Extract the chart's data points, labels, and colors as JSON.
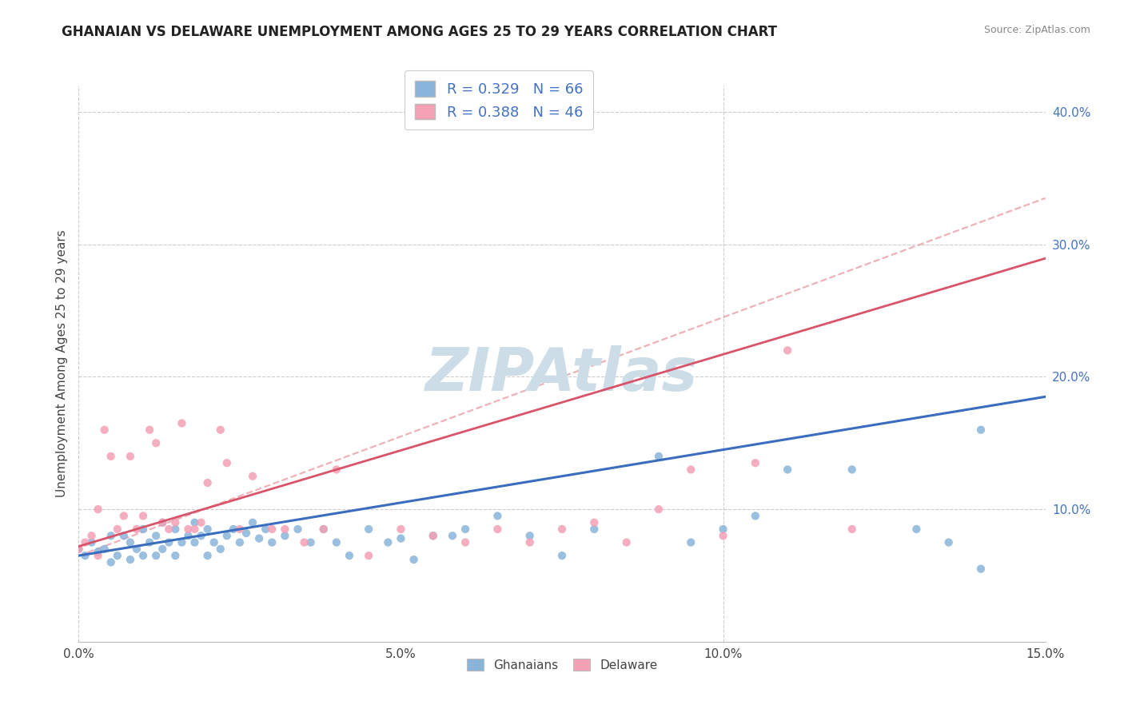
{
  "title": "GHANAIAN VS DELAWARE UNEMPLOYMENT AMONG AGES 25 TO 29 YEARS CORRELATION CHART",
  "source": "Source: ZipAtlas.com",
  "ylabel": "Unemployment Among Ages 25 to 29 years",
  "xlim": [
    0.0,
    0.15
  ],
  "ylim": [
    0.0,
    0.42
  ],
  "xticks": [
    0.0,
    0.05,
    0.1,
    0.15
  ],
  "xticklabels": [
    "0.0%",
    "5.0%",
    "10.0%",
    "15.0%"
  ],
  "yticks_right": [
    0.1,
    0.2,
    0.3,
    0.4
  ],
  "yticklabels_right": [
    "10.0%",
    "20.0%",
    "30.0%",
    "40.0%"
  ],
  "legend_r1": "R = 0.329",
  "legend_n1": "N = 66",
  "legend_r2": "R = 0.388",
  "legend_n2": "N = 46",
  "blue_color": "#8ab4d9",
  "pink_color": "#f4a0b5",
  "trend_blue": "#3b6dbf",
  "trend_pink": "#d9546a",
  "dashed_pink": "#e8909a",
  "watermark": "ZIPAtlas",
  "watermark_color": "#ccdde8",
  "blue_intercept": 0.065,
  "blue_slope": 0.8,
  "pink_intercept": 0.072,
  "pink_slope": 1.45,
  "dashed_intercept": 0.065,
  "dashed_slope": 1.8,
  "blue_scatter_x": [
    0.0,
    0.001,
    0.002,
    0.003,
    0.004,
    0.005,
    0.005,
    0.006,
    0.007,
    0.008,
    0.008,
    0.009,
    0.01,
    0.01,
    0.011,
    0.012,
    0.012,
    0.013,
    0.013,
    0.014,
    0.015,
    0.015,
    0.016,
    0.017,
    0.018,
    0.018,
    0.019,
    0.02,
    0.02,
    0.021,
    0.022,
    0.023,
    0.024,
    0.025,
    0.026,
    0.027,
    0.028,
    0.029,
    0.03,
    0.032,
    0.034,
    0.036,
    0.038,
    0.04,
    0.042,
    0.045,
    0.048,
    0.05,
    0.052,
    0.055,
    0.058,
    0.06,
    0.065,
    0.07,
    0.075,
    0.08,
    0.09,
    0.095,
    0.1,
    0.105,
    0.11,
    0.12,
    0.13,
    0.135,
    0.14,
    0.14
  ],
  "blue_scatter_y": [
    0.07,
    0.065,
    0.075,
    0.068,
    0.07,
    0.06,
    0.08,
    0.065,
    0.08,
    0.062,
    0.075,
    0.07,
    0.065,
    0.085,
    0.075,
    0.065,
    0.08,
    0.07,
    0.09,
    0.075,
    0.065,
    0.085,
    0.075,
    0.08,
    0.075,
    0.09,
    0.08,
    0.065,
    0.085,
    0.075,
    0.07,
    0.08,
    0.085,
    0.075,
    0.082,
    0.09,
    0.078,
    0.085,
    0.075,
    0.08,
    0.085,
    0.075,
    0.085,
    0.075,
    0.065,
    0.085,
    0.075,
    0.078,
    0.062,
    0.08,
    0.08,
    0.085,
    0.095,
    0.08,
    0.065,
    0.085,
    0.14,
    0.075,
    0.085,
    0.095,
    0.13,
    0.13,
    0.085,
    0.075,
    0.16,
    0.055
  ],
  "pink_scatter_x": [
    0.0,
    0.001,
    0.002,
    0.003,
    0.003,
    0.004,
    0.005,
    0.006,
    0.007,
    0.008,
    0.009,
    0.01,
    0.011,
    0.012,
    0.013,
    0.014,
    0.015,
    0.016,
    0.017,
    0.018,
    0.019,
    0.02,
    0.022,
    0.023,
    0.025,
    0.027,
    0.03,
    0.032,
    0.035,
    0.038,
    0.04,
    0.045,
    0.05,
    0.055,
    0.06,
    0.065,
    0.07,
    0.075,
    0.08,
    0.085,
    0.09,
    0.095,
    0.1,
    0.105,
    0.11,
    0.12
  ],
  "pink_scatter_y": [
    0.07,
    0.075,
    0.08,
    0.065,
    0.1,
    0.16,
    0.14,
    0.085,
    0.095,
    0.14,
    0.085,
    0.095,
    0.16,
    0.15,
    0.09,
    0.085,
    0.09,
    0.165,
    0.085,
    0.085,
    0.09,
    0.12,
    0.16,
    0.135,
    0.085,
    0.125,
    0.085,
    0.085,
    0.075,
    0.085,
    0.13,
    0.065,
    0.085,
    0.08,
    0.075,
    0.085,
    0.075,
    0.085,
    0.09,
    0.075,
    0.1,
    0.13,
    0.08,
    0.135,
    0.22,
    0.085
  ],
  "title_fontsize": 12,
  "axis_fontsize": 11,
  "tick_fontsize": 11
}
